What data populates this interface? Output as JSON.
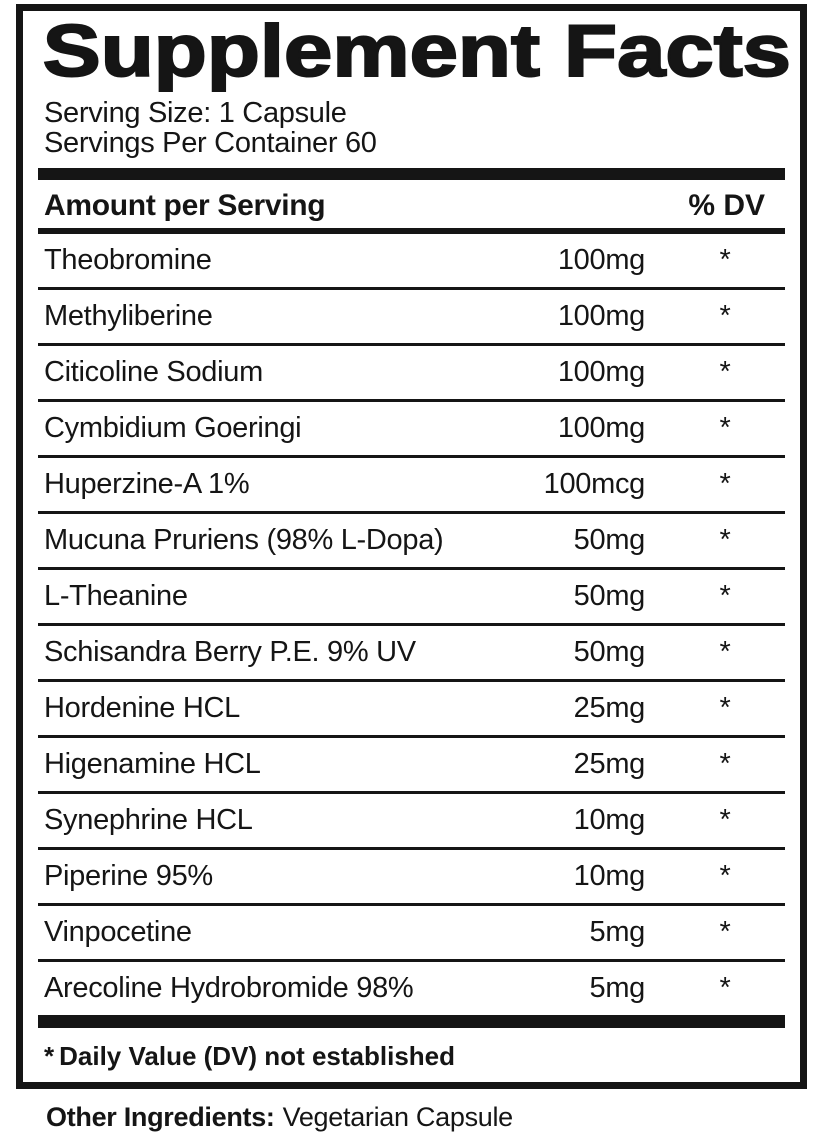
{
  "label": {
    "title": "Supplement Facts",
    "serving_size": "Serving Size: 1 Capsule",
    "servings_per_container": "Servings Per Container 60",
    "header": {
      "amount": "Amount per Serving",
      "dv": "% DV"
    },
    "rows": [
      {
        "name": "Theobromine",
        "amount": "100mg",
        "dv": "*"
      },
      {
        "name": "Methyliberine",
        "amount": "100mg",
        "dv": "*"
      },
      {
        "name": "Citicoline Sodium",
        "amount": "100mg",
        "dv": "*"
      },
      {
        "name": "Cymbidium Goeringi",
        "amount": "100mg",
        "dv": "*"
      },
      {
        "name": "Huperzine-A 1%",
        "amount": "100mcg",
        "dv": "*"
      },
      {
        "name": "Mucuna Pruriens (98% L-Dopa)",
        "amount": "50mg",
        "dv": "*"
      },
      {
        "name": "L-Theanine",
        "amount": "50mg",
        "dv": "*"
      },
      {
        "name": "Schisandra Berry P.E. 9% UV",
        "amount": "50mg",
        "dv": "*"
      },
      {
        "name": "Hordenine HCL",
        "amount": "25mg",
        "dv": "*"
      },
      {
        "name": "Higenamine HCL",
        "amount": "25mg",
        "dv": "*"
      },
      {
        "name": "Synephrine HCL",
        "amount": "10mg",
        "dv": "*"
      },
      {
        "name": "Piperine 95%",
        "amount": "10mg",
        "dv": "*"
      },
      {
        "name": "Vinpocetine",
        "amount": "5mg",
        "dv": "*"
      },
      {
        "name": "Arecoline Hydrobromide 98%",
        "amount": "5mg",
        "dv": "*"
      }
    ],
    "footnote_marker": "*",
    "footnote_text": "Daily Value (DV) not established",
    "other_ingredients_label": "Other Ingredients:",
    "other_ingredients_value": "Vegetarian Capsule",
    "colors": {
      "text": "#151515",
      "background": "#ffffff",
      "rule": "#151515"
    }
  }
}
